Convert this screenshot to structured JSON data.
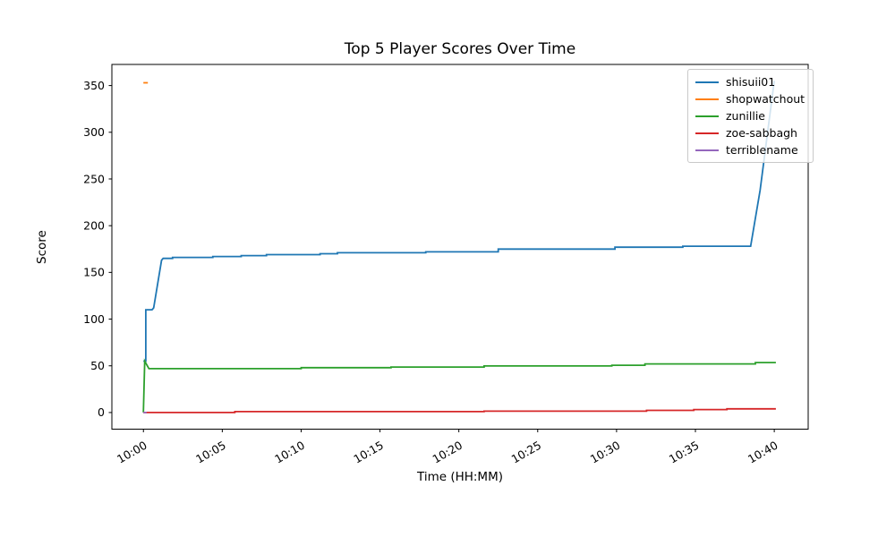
{
  "chart_data": {
    "type": "line",
    "title": "Top 5 Player Scores Over Time",
    "xlabel": "Time (HH:MM)",
    "ylabel": "Score",
    "grid": false,
    "legend_position": "upper right",
    "axis_color": "#000000",
    "xlim_minutes": [
      -2,
      42.15
    ],
    "ylim": [
      -17.8,
      372.6
    ],
    "x_ticks": [
      {
        "minute": 0,
        "label": "10:00"
      },
      {
        "minute": 5,
        "label": "10:05"
      },
      {
        "minute": 10,
        "label": "10:10"
      },
      {
        "minute": 15,
        "label": "10:15"
      },
      {
        "minute": 20,
        "label": "10:20"
      },
      {
        "minute": 25,
        "label": "10:25"
      },
      {
        "minute": 30,
        "label": "10:30"
      },
      {
        "minute": 35,
        "label": "10:35"
      },
      {
        "minute": 40,
        "label": "10:40"
      }
    ],
    "y_ticks": [
      0,
      50,
      100,
      150,
      200,
      250,
      300,
      350
    ],
    "series": [
      {
        "name": "shisuii01",
        "color": "#1f77b4",
        "points": [
          [
            0,
            55
          ],
          [
            0.15,
            55
          ],
          [
            0.15,
            110
          ],
          [
            0.55,
            110
          ],
          [
            0.65,
            112
          ],
          [
            1.15,
            163
          ],
          [
            1.25,
            165
          ],
          [
            1.85,
            165
          ],
          [
            1.85,
            166
          ],
          [
            4.4,
            166
          ],
          [
            4.4,
            167
          ],
          [
            6.2,
            167
          ],
          [
            6.2,
            168
          ],
          [
            7.8,
            168
          ],
          [
            7.8,
            169
          ],
          [
            11.2,
            169
          ],
          [
            11.2,
            170
          ],
          [
            12.3,
            170
          ],
          [
            12.3,
            171
          ],
          [
            17.9,
            171
          ],
          [
            17.9,
            172
          ],
          [
            22.5,
            172
          ],
          [
            22.5,
            175
          ],
          [
            29.9,
            175
          ],
          [
            29.9,
            177
          ],
          [
            34.2,
            177
          ],
          [
            34.2,
            178
          ],
          [
            38.5,
            178
          ],
          [
            39.1,
            238
          ],
          [
            40,
            355
          ]
        ]
      },
      {
        "name": "shopwatchout",
        "color": "#ff7f0e",
        "points": [
          [
            0,
            353
          ],
          [
            0.28,
            353
          ]
        ]
      },
      {
        "name": "zunillie",
        "color": "#2ca02c",
        "points": [
          [
            0,
            0
          ],
          [
            0.08,
            55
          ],
          [
            0.35,
            47
          ],
          [
            10,
            47
          ],
          [
            10,
            48
          ],
          [
            15.7,
            48
          ],
          [
            15.7,
            48.7
          ],
          [
            21.6,
            48.7
          ],
          [
            21.6,
            49.8
          ],
          [
            29.7,
            49.8
          ],
          [
            29.7,
            50.6
          ],
          [
            31.8,
            50.6
          ],
          [
            31.8,
            52
          ],
          [
            38.8,
            52
          ],
          [
            38.8,
            53.5
          ],
          [
            40.1,
            53.5
          ]
        ]
      },
      {
        "name": "zoe-sabbagh",
        "color": "#d62728",
        "points": [
          [
            0,
            0
          ],
          [
            5.8,
            0
          ],
          [
            5.8,
            1
          ],
          [
            21.6,
            1
          ],
          [
            21.6,
            1.5
          ],
          [
            31.9,
            1.5
          ],
          [
            31.9,
            2.3
          ],
          [
            34.9,
            2.3
          ],
          [
            34.9,
            3.2
          ],
          [
            37,
            3.2
          ],
          [
            37,
            3.9
          ],
          [
            40.1,
            3.9
          ]
        ]
      },
      {
        "name": "terriblename",
        "color": "#9467bd",
        "points": [
          [
            0,
            0
          ],
          [
            0.2,
            0
          ]
        ]
      }
    ]
  }
}
